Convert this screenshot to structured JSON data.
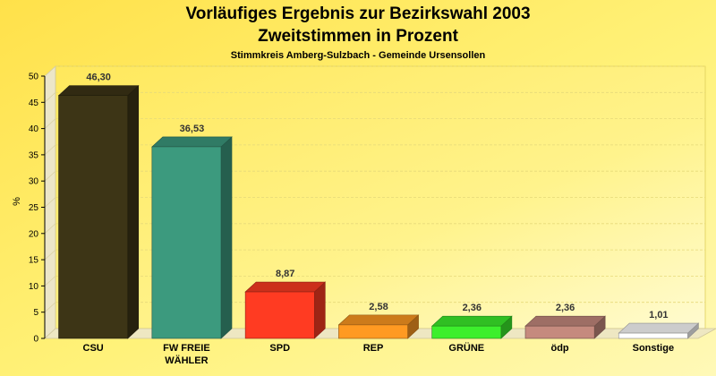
{
  "chart_data": {
    "type": "bar",
    "title": "Vorläufiges Ergebnis zur Bezirkswahl 2003",
    "subtitle": "Zweitstimmen in Prozent",
    "caption": "Stimmkreis Amberg-Sulzbach - Gemeinde Ursensollen",
    "ylabel": "%",
    "xlabel": "",
    "ylim": [
      0,
      50
    ],
    "yticks": [
      0,
      5,
      10,
      15,
      20,
      25,
      30,
      35,
      40,
      45,
      50
    ],
    "grid": true,
    "categories": [
      {
        "lines": [
          "CSU"
        ]
      },
      {
        "lines": [
          "FW FREIE",
          "WÄHLER"
        ]
      },
      {
        "lines": [
          "SPD"
        ]
      },
      {
        "lines": [
          "REP"
        ]
      },
      {
        "lines": [
          "GRÜNE"
        ]
      },
      {
        "lines": [
          "ödp"
        ]
      },
      {
        "lines": [
          "Sonstige"
        ]
      }
    ],
    "values": [
      46.3,
      36.53,
      8.87,
      2.58,
      2.36,
      2.36,
      1.01
    ],
    "value_labels": [
      "46,30",
      "36,53",
      "8,87",
      "2,58",
      "2,36",
      "2,36",
      "1,01"
    ],
    "colors": [
      "#3d3516",
      "#3c9a7e",
      "#ff3b22",
      "#ff9a22",
      "#3cef2c",
      "#c58a7e",
      "#ffffff"
    ]
  }
}
